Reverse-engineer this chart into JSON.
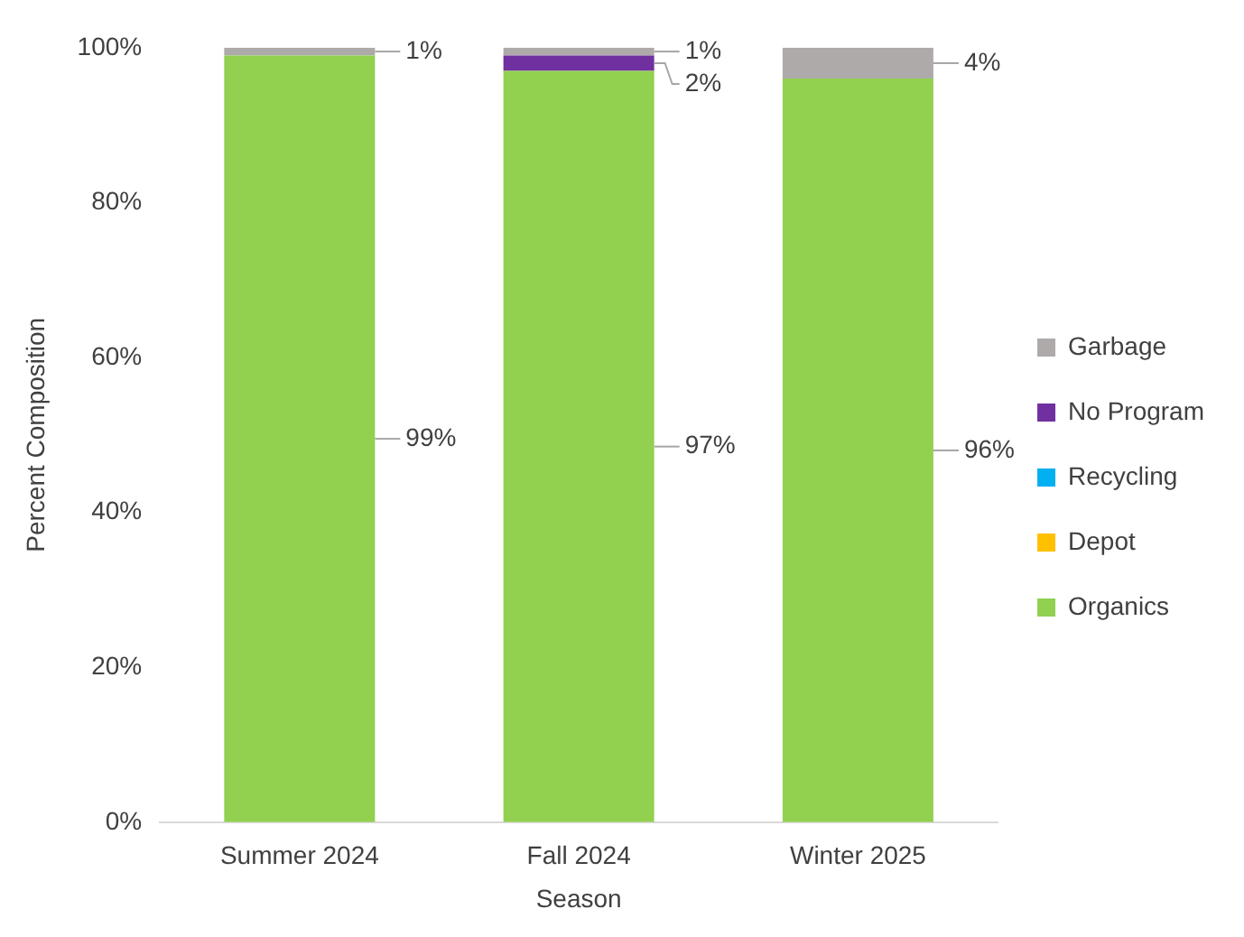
{
  "chart_data": {
    "type": "bar",
    "stacked": true,
    "xlabel": "Season",
    "ylabel": "Percent Composition",
    "categories": [
      "Summer 2024",
      "Fall 2024",
      "Winter 2025"
    ],
    "series": [
      {
        "name": "Organics",
        "color": "#92d050",
        "values": [
          99,
          97,
          96
        ],
        "value_labels": [
          "99%",
          "97%",
          "96%"
        ]
      },
      {
        "name": "Depot",
        "color": "#ffc000",
        "values": [
          0,
          0,
          0
        ],
        "value_labels": [
          null,
          null,
          null
        ]
      },
      {
        "name": "Recycling",
        "color": "#00b0f0",
        "values": [
          0,
          0,
          0
        ],
        "value_labels": [
          null,
          null,
          null
        ]
      },
      {
        "name": "No Program",
        "color": "#7030a0",
        "values": [
          0,
          2,
          0
        ],
        "value_labels": [
          null,
          "2%",
          null
        ]
      },
      {
        "name": "Garbage",
        "color": "#aeaaaa",
        "values": [
          1,
          1,
          4
        ],
        "value_labels": [
          "1%",
          "1%",
          "4%"
        ]
      }
    ],
    "ylim": [
      0,
      100
    ],
    "yticks": [
      {
        "value": 0,
        "label": "0%"
      },
      {
        "value": 20,
        "label": "20%"
      },
      {
        "value": 40,
        "label": "40%"
      },
      {
        "value": 60,
        "label": "60%"
      },
      {
        "value": 80,
        "label": "80%"
      },
      {
        "value": 100,
        "label": "100%"
      }
    ],
    "grid": false,
    "legend": "right"
  }
}
